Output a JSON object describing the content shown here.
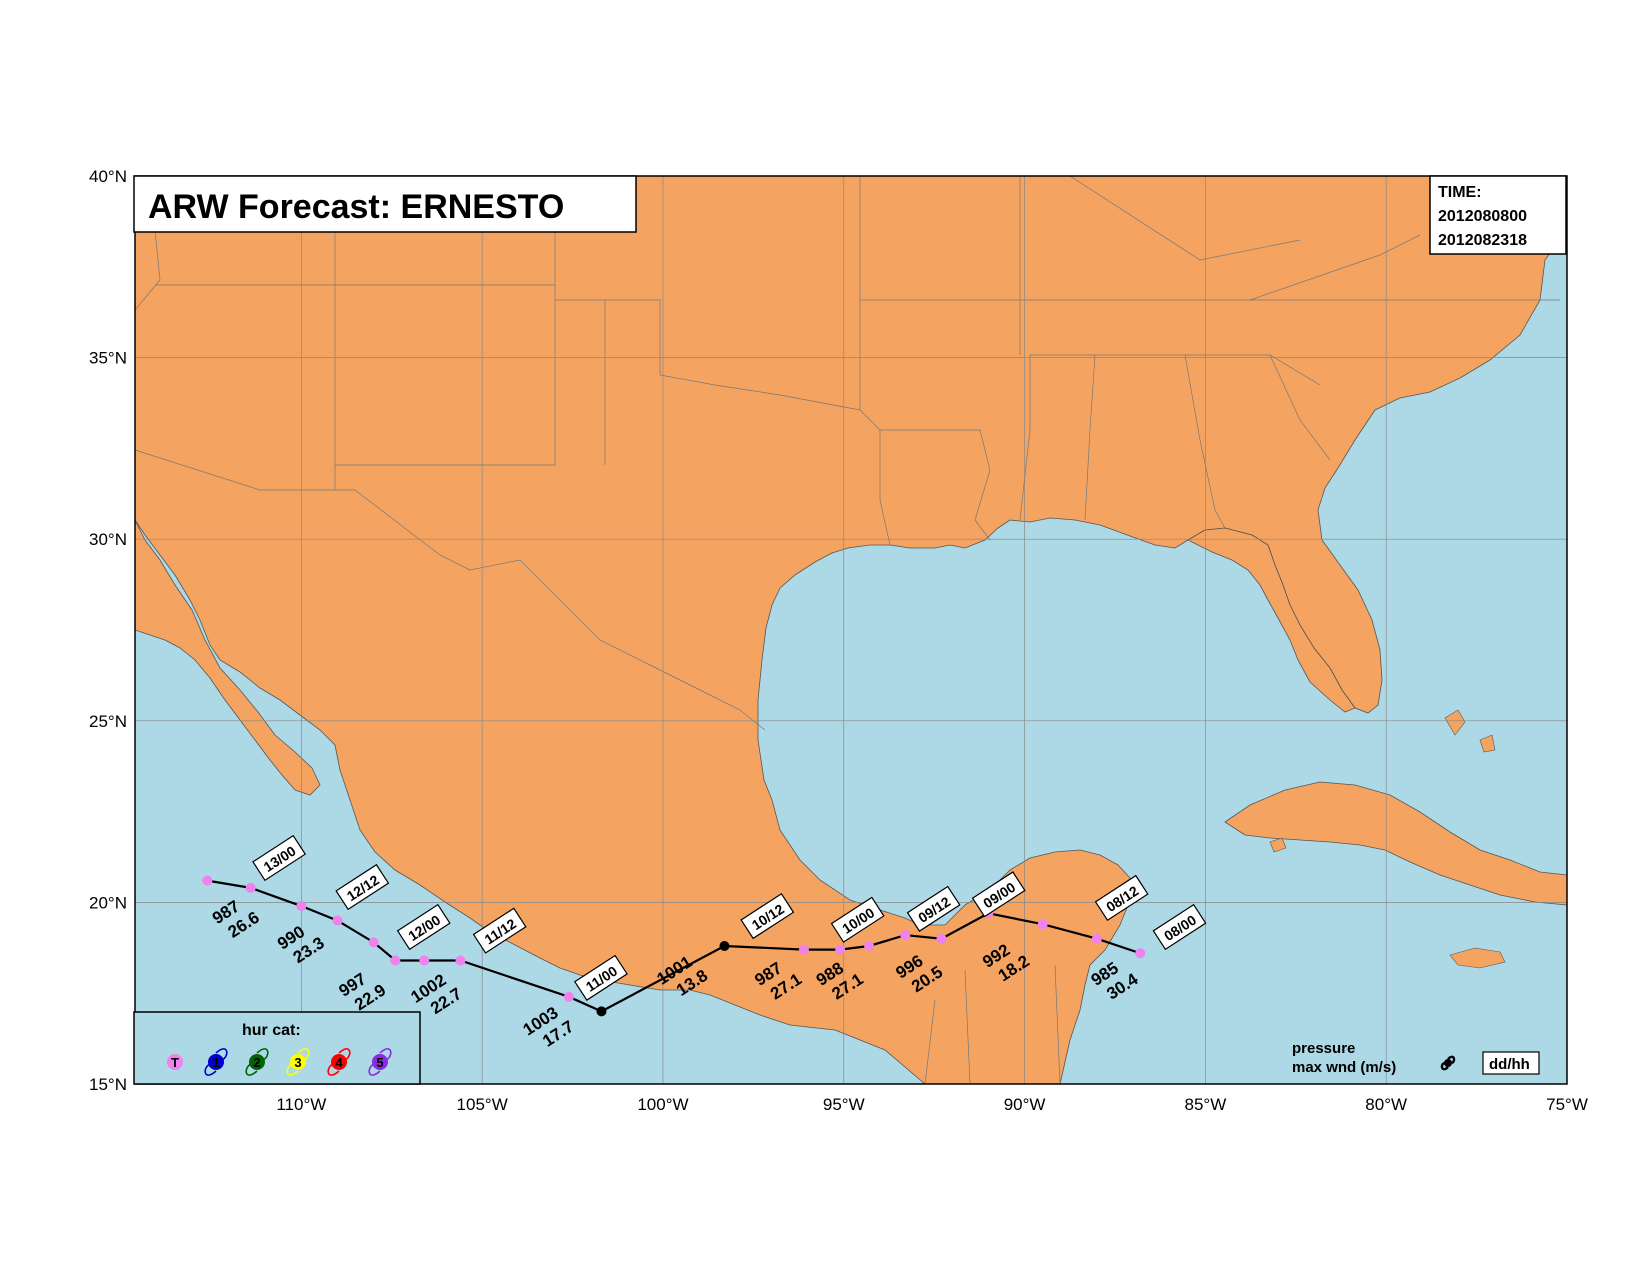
{
  "title": "ARW Forecast: ERNESTO",
  "time_box": {
    "heading": "TIME:",
    "line1": "2012080800",
    "line2": "2012082318"
  },
  "colors": {
    "ocean": "#add8e6",
    "land": "#f4a460",
    "track": "#000000",
    "tropical_storm_dot": "#ee82ee"
  },
  "axes": {
    "lon_labels": [
      "110°W",
      "105°W",
      "100°W",
      "95°W",
      "90°W",
      "85°W",
      "80°W",
      "75°W"
    ],
    "lat_labels": [
      "40°N",
      "35°N",
      "30°N",
      "25°N",
      "20°N",
      "15°N"
    ]
  },
  "track": {
    "points": [
      {
        "lon": -86.8,
        "lat": 18.6,
        "cat": "T"
      },
      {
        "lon": -88.0,
        "lat": 19.0,
        "cat": "T"
      },
      {
        "lon": -89.5,
        "lat": 19.4,
        "cat": "T"
      },
      {
        "lon": -91.0,
        "lat": 19.7,
        "cat": "T"
      },
      {
        "lon": -92.3,
        "lat": 19.0,
        "cat": "T"
      },
      {
        "lon": -93.3,
        "lat": 19.1,
        "cat": "T"
      },
      {
        "lon": -94.3,
        "lat": 18.8,
        "cat": "T"
      },
      {
        "lon": -95.1,
        "lat": 18.7,
        "cat": "T"
      },
      {
        "lon": -96.1,
        "lat": 18.7,
        "cat": "T"
      },
      {
        "lon": -98.3,
        "lat": 18.8,
        "cat": "low"
      },
      {
        "lon": -101.7,
        "lat": 17.0,
        "cat": "low"
      },
      {
        "lon": -102.6,
        "lat": 17.4,
        "cat": "T"
      },
      {
        "lon": -105.6,
        "lat": 18.4,
        "cat": "T"
      },
      {
        "lon": -106.6,
        "lat": 18.4,
        "cat": "T"
      },
      {
        "lon": -107.4,
        "lat": 18.4,
        "cat": "T"
      },
      {
        "lon": -108.0,
        "lat": 18.9,
        "cat": "T"
      },
      {
        "lon": -109.0,
        "lat": 19.5,
        "cat": "T"
      },
      {
        "lon": -110.0,
        "lat": 19.9,
        "cat": "T"
      },
      {
        "lon": -111.4,
        "lat": 20.4,
        "cat": "T"
      },
      {
        "lon": -112.6,
        "lat": 20.6,
        "cat": "T"
      }
    ],
    "date_labels": [
      "08/00",
      "08/12",
      "09/00",
      "09/12",
      "10/00",
      "10/12",
      "11/00",
      "11/12",
      "12/00",
      "12/12",
      "13/00"
    ],
    "intensity_labels": [
      {
        "pressure": "985",
        "wind": "30.4"
      },
      {
        "pressure": "992",
        "wind": "18.2"
      },
      {
        "pressure": "996",
        "wind": "20.5"
      },
      {
        "pressure": "988",
        "wind": "27.1"
      },
      {
        "pressure": "987",
        "wind": "27.1"
      },
      {
        "pressure": "1001",
        "wind": "13.8"
      },
      {
        "pressure": "1003",
        "wind": "17.7"
      },
      {
        "pressure": "1002",
        "wind": "22.7"
      },
      {
        "pressure": "997",
        "wind": "22.9"
      },
      {
        "pressure": "990",
        "wind": "23.3"
      },
      {
        "pressure": "987",
        "wind": "26.6"
      }
    ]
  },
  "legend": {
    "title": "hur cat:",
    "categories": [
      {
        "symbol": "T",
        "color": "#ee82ee"
      },
      {
        "symbol": "1",
        "color": "#0000cd"
      },
      {
        "symbol": "2",
        "color": "#006400"
      },
      {
        "symbol": "3",
        "color": "#ffff00"
      },
      {
        "symbol": "4",
        "color": "#ff0000"
      },
      {
        "symbol": "5",
        "color": "#8a2be2"
      }
    ]
  },
  "key": {
    "pressure_label": "pressure",
    "wind_label": "max wnd (m/s)",
    "date_format": "dd/hh"
  }
}
